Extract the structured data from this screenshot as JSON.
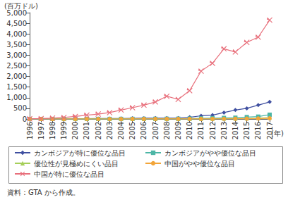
{
  "chart_data": {
    "type": "line",
    "y_label": "(百万ドル)",
    "x_label": "(年)",
    "annotations": [
      "資料：GTA から作成。"
    ],
    "categories": [
      "1996",
      "1997",
      "1998",
      "1999",
      "2000",
      "2001",
      "2002",
      "2003",
      "2004",
      "2005",
      "2006",
      "2007",
      "2008",
      "2009",
      "2010",
      "2011",
      "2012",
      "2013",
      "2014",
      "2015",
      "2016",
      "2017"
    ],
    "series": [
      {
        "name": "カンボジアが特に優位な品目",
        "color": "#3f4fa0",
        "marker": "diamond",
        "values": [
          5,
          6,
          8,
          10,
          12,
          15,
          18,
          20,
          25,
          30,
          35,
          38,
          40,
          42,
          80,
          150,
          180,
          300,
          420,
          500,
          650,
          800
        ]
      },
      {
        "name": "カンボジアがやや優位な品目",
        "color": "#4db6a6",
        "marker": "square",
        "values": [
          0,
          0,
          0,
          1,
          1,
          2,
          2,
          3,
          4,
          5,
          6,
          8,
          10,
          12,
          20,
          30,
          40,
          50,
          60,
          90,
          110,
          200
        ]
      },
      {
        "name": "優位性が見極めにくい品目",
        "color": "#a6cf5a",
        "marker": "triangle",
        "values": [
          0,
          0,
          0,
          0,
          0,
          0,
          0,
          0,
          1,
          1,
          2,
          2,
          3,
          3,
          5,
          8,
          10,
          15,
          20,
          25,
          40,
          60
        ]
      },
      {
        "name": "中国がやや優位な品目",
        "color": "#f2a53a",
        "marker": "circle",
        "values": [
          0,
          0,
          0,
          0,
          0,
          0,
          0,
          0,
          0,
          1,
          1,
          1,
          2,
          2,
          3,
          4,
          5,
          8,
          10,
          15,
          20,
          30
        ]
      },
      {
        "name": "中国が特に優位な品目",
        "color": "#e8707c",
        "marker": "x",
        "values": [
          10,
          20,
          40,
          70,
          120,
          180,
          230,
          300,
          420,
          530,
          650,
          800,
          1070,
          920,
          1330,
          2250,
          2620,
          3300,
          3150,
          3600,
          3850,
          4650
        ]
      }
    ],
    "ylim": [
      0,
      5000
    ],
    "yticks": [
      0,
      500,
      {
        "value": 1000,
        "label": "1,000"
      },
      {
        "value": 1500,
        "label": "1,500"
      },
      {
        "value": 2000,
        "label": "2,000"
      },
      {
        "value": 2500,
        "label": "2,500"
      },
      {
        "value": 3000,
        "label": "3,000"
      },
      {
        "value": 3500,
        "label": "3,500"
      },
      {
        "value": 4000,
        "label": "4,000"
      },
      {
        "value": 4500,
        "label": "4,500"
      },
      {
        "value": 5000,
        "label": "5,000"
      }
    ],
    "grid": false,
    "legend": "bottom"
  }
}
